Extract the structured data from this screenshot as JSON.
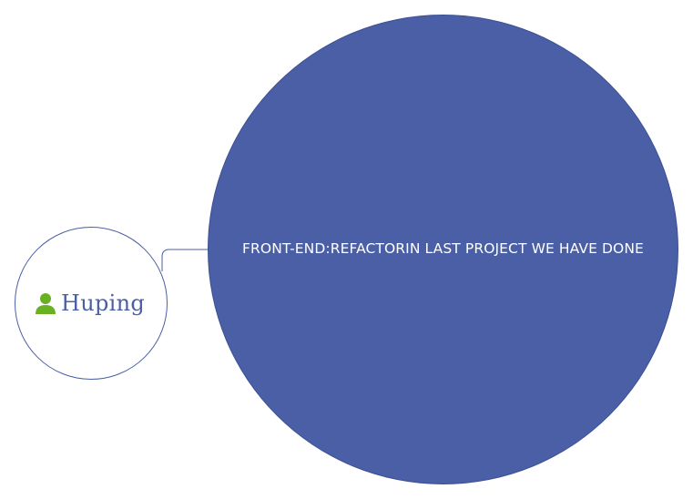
{
  "root": {
    "label": "Huping",
    "icon": "person-icon",
    "icon_color": "#6ab023",
    "border_color": "#4a5fa5"
  },
  "topic": {
    "label": "FRONT-END:REFACTORIN LAST PROJECT WE HAVE DONE",
    "fill_color": "#4a5fa5",
    "text_color": "#ffffff"
  },
  "connector": {
    "color": "#4a5fa5"
  }
}
